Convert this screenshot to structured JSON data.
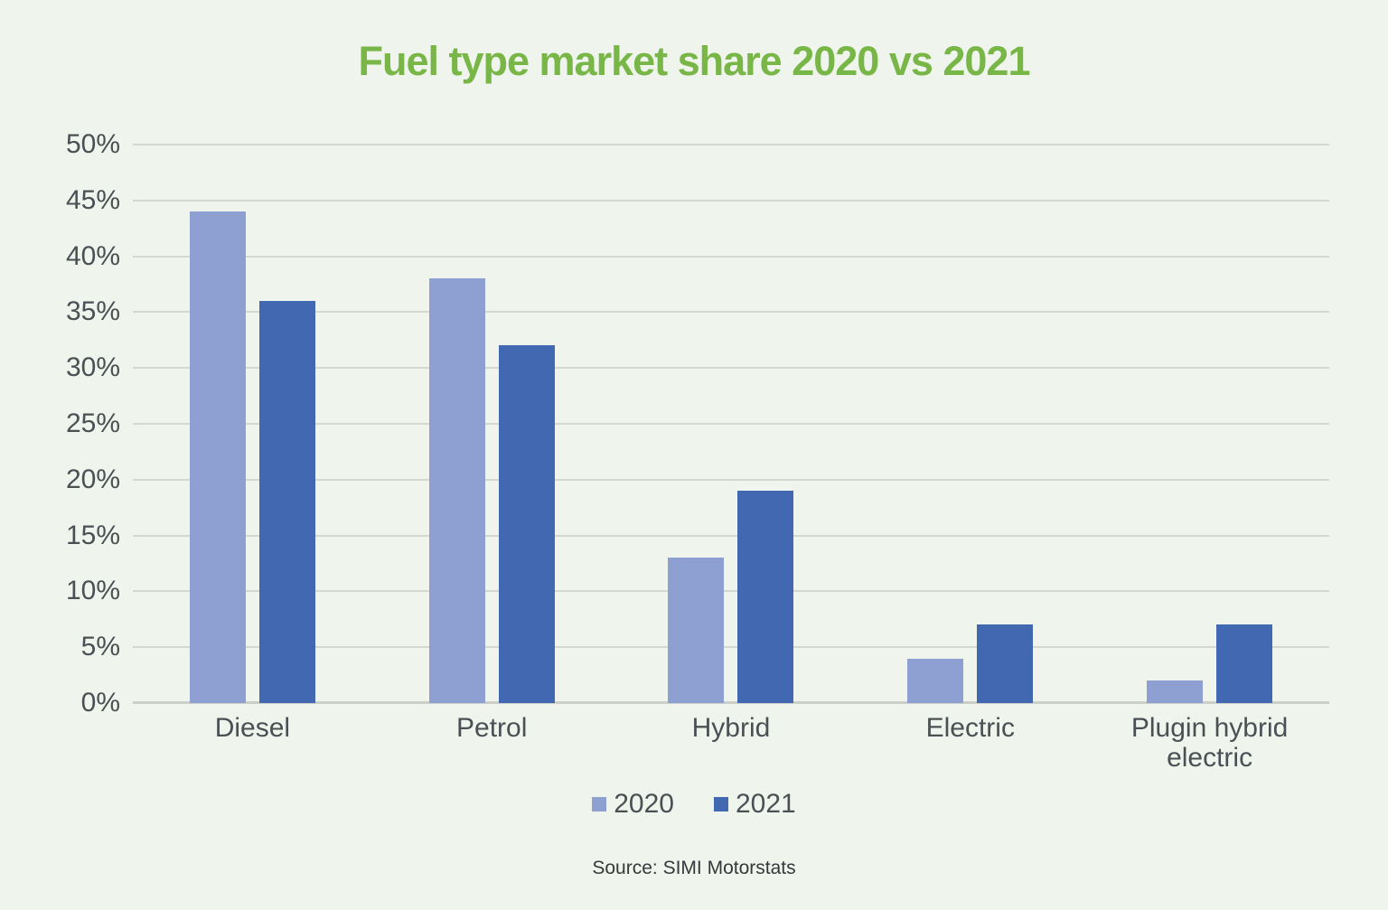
{
  "page": {
    "background_color": "#eff4ec"
  },
  "chart_data": {
    "type": "bar",
    "title": "Fuel type market share 2020 vs 2021",
    "title_color": "#79b648",
    "categories": [
      "Diesel",
      "Petrol",
      "Hybrid",
      "Electric",
      "Plugin hybrid electric"
    ],
    "series": [
      {
        "name": "2020",
        "color": "#8da0d1",
        "values": [
          44,
          38,
          13,
          4,
          2
        ]
      },
      {
        "name": "2021",
        "color": "#4168b1",
        "values": [
          36,
          32,
          19,
          7,
          7
        ]
      }
    ],
    "xlabel": "",
    "ylabel": "",
    "y_axis": {
      "min": 0,
      "max": 50,
      "step": 5,
      "suffix": "%"
    },
    "ylim": [
      0,
      50
    ],
    "grid": true,
    "legend_position": "bottom",
    "source": "Source: SIMI Motorstats",
    "colors": {
      "grid_line": "#d4d8d1",
      "axis_line": "#cbcfc8",
      "tick_label": "#4a5054",
      "category_label": "#4a5054",
      "legend_label": "#4a5054",
      "source_text": "#35393c"
    }
  }
}
